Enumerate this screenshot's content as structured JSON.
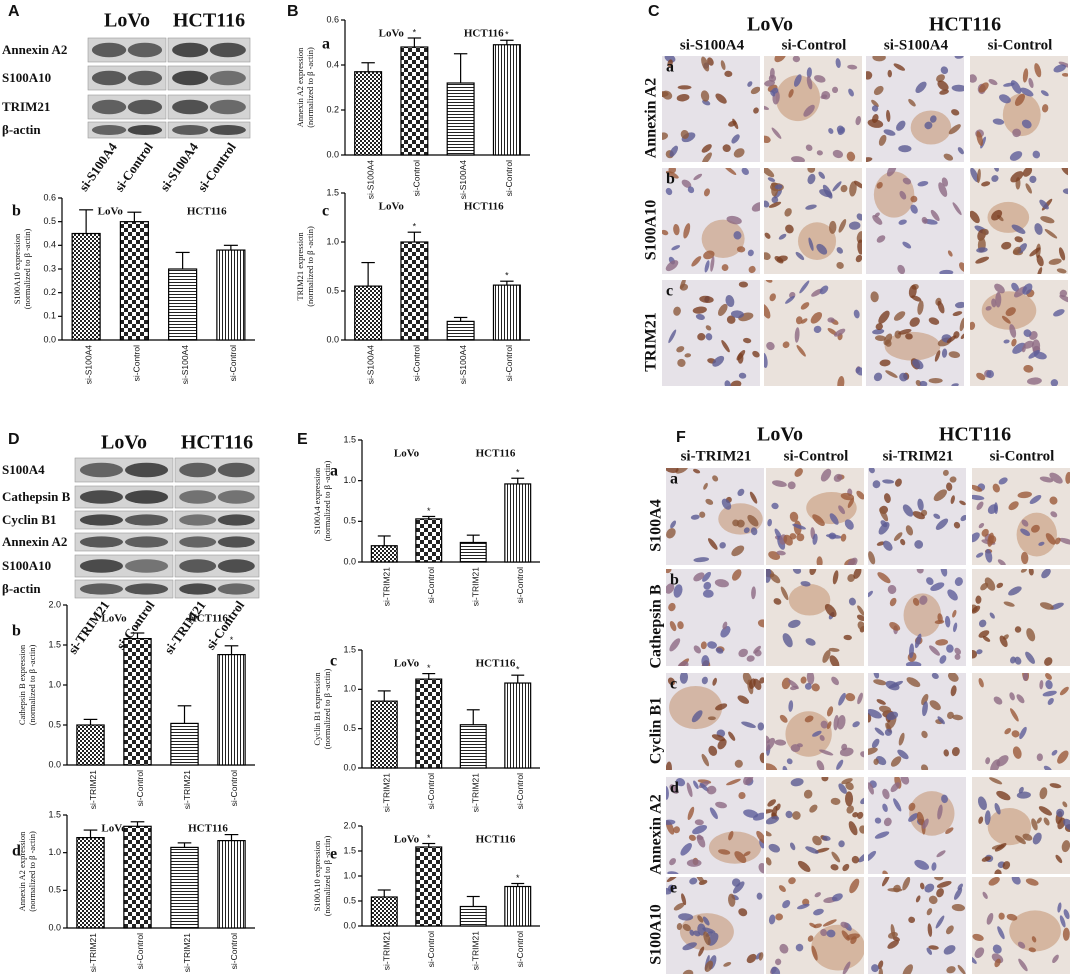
{
  "blots": [
    {
      "panel": "A",
      "groups": [
        "LoVo",
        "HCT116"
      ],
      "rows": [
        "Annexin A2",
        "S100A10",
        "TRIM21",
        "β-actin"
      ],
      "lanes": [
        "si-S100A4",
        "si-Control",
        "si-S100A4",
        "si-Control"
      ]
    },
    {
      "panel": "D",
      "groups": [
        "LoVo",
        "HCT116"
      ],
      "rows": [
        "S100A4",
        "Cathepsin B",
        "Cyclin B1",
        "Annexin A2",
        "S100A10",
        "β-actin"
      ],
      "lanes": [
        "si-TRIM21",
        "si-Control",
        "si-TRIM21",
        "si-Control"
      ]
    }
  ],
  "micrographs": [
    {
      "panel": "C",
      "groups": [
        "LoVo",
        "HCT116"
      ],
      "columns": [
        "si-S100A4",
        "si-Control",
        "si-S100A4",
        "si-Control"
      ],
      "rows": [
        {
          "letter": "a",
          "label": "Annexin A2"
        },
        {
          "letter": "b",
          "label": "S100A10"
        },
        {
          "letter": "c",
          "label": "TRIM21"
        }
      ]
    },
    {
      "panel": "F",
      "groups": [
        "LoVo",
        "HCT116"
      ],
      "columns": [
        "si-TRIM21",
        "si-Control",
        "si-TRIM21",
        "si-Control"
      ],
      "rows": [
        {
          "letter": "a",
          "label": "S100A4"
        },
        {
          "letter": "b",
          "label": "Cathepsin B"
        },
        {
          "letter": "c",
          "label": "Cyclin B1"
        },
        {
          "letter": "d",
          "label": "Annexin A2"
        },
        {
          "letter": "e",
          "label": "S100A10"
        }
      ]
    }
  ],
  "chart_data": [
    {
      "type": "bar",
      "panel": "B",
      "letter": "a",
      "ylabel": [
        "Annexin A2 expression",
        "(normalized to β -actin)"
      ],
      "groups": [
        "LoVo",
        "HCT116"
      ],
      "categories": [
        "si-S100A4",
        "si-Control",
        "si-S100A4",
        "si-Control"
      ],
      "values": [
        0.37,
        0.48,
        0.32,
        0.49
      ],
      "errors": [
        0.04,
        0.04,
        0.13,
        0.02
      ],
      "significance": [
        null,
        "*",
        null,
        "*"
      ],
      "fills": [
        "checker-small",
        "checker-large",
        "horizontal-lines",
        "vertical-lines"
      ],
      "ylim": [
        0,
        0.6
      ],
      "yticks": [
        {
          "value": 0,
          "label": "0.0"
        },
        0.2,
        0.4,
        0.6
      ]
    },
    {
      "type": "bar",
      "letter": "b",
      "ylabel": [
        "S100A10 expression",
        "(normalized to β -actin)"
      ],
      "groups": [
        "LoVo",
        "HCT116"
      ],
      "categories": [
        "si-S100A4",
        "si-Control",
        "si-S100A4",
        "si-Control"
      ],
      "values": [
        0.45,
        0.5,
        0.3,
        0.38
      ],
      "errors": [
        0.1,
        0.04,
        0.07,
        0.02
      ],
      "significance": [
        null,
        null,
        null,
        null
      ],
      "fills": [
        "checker-small",
        "checker-large",
        "horizontal-lines",
        "vertical-lines"
      ],
      "ylim": [
        0,
        0.6
      ],
      "yticks": [
        {
          "value": 0,
          "label": "0.0"
        },
        0.1,
        0.2,
        0.3,
        0.4,
        0.5,
        0.6
      ]
    },
    {
      "type": "bar",
      "letter": "c",
      "ylabel": [
        "TRIM21 expression",
        "(normalized to β -actin)"
      ],
      "groups": [
        "LoVo",
        "HCT116"
      ],
      "categories": [
        "si-S100A4",
        "si-Control",
        "si-S100A4",
        "si-Control"
      ],
      "values": [
        0.55,
        1.0,
        0.19,
        0.56
      ],
      "errors": [
        0.24,
        0.1,
        0.04,
        0.04
      ],
      "significance": [
        null,
        "*",
        null,
        "*"
      ],
      "fills": [
        "checker-small",
        "checker-large",
        "horizontal-lines",
        "vertical-lines"
      ],
      "ylim": [
        0,
        1.5
      ],
      "yticks": [
        {
          "value": 0,
          "label": "0.0"
        },
        0.5,
        {
          "value": 1,
          "label": "1.0"
        },
        1.5
      ]
    },
    {
      "type": "bar",
      "letter": "b",
      "ylabel": [
        "Cathepsin B expression",
        "(normalized to β -actin)"
      ],
      "groups": [
        "LoVo",
        "HCT116"
      ],
      "categories": [
        "si-TRIM21",
        "si-Control",
        "si-TRIM21",
        "si-Control"
      ],
      "values": [
        0.5,
        1.58,
        0.52,
        1.38
      ],
      "errors": [
        0.07,
        0.07,
        0.22,
        0.11
      ],
      "significance": [
        null,
        "*",
        null,
        "*"
      ],
      "fills": [
        "checker-small",
        "checker-large",
        "horizontal-lines",
        "vertical-lines"
      ],
      "ylim": [
        0,
        2
      ],
      "yticks": [
        {
          "value": 0,
          "label": "0.0"
        },
        0.5,
        {
          "value": 1,
          "label": "1.0"
        },
        1.5,
        {
          "value": 2,
          "label": "2.0"
        }
      ]
    },
    {
      "type": "bar",
      "letter": "d",
      "ylabel": [
        "Annexin A2 expression",
        "(normalized to β -actin)"
      ],
      "groups": [
        "LoVo",
        "HCT116"
      ],
      "categories": [
        "si-TRIM21",
        "si-Control",
        "si-TRIM21",
        "si-Control"
      ],
      "values": [
        1.2,
        1.35,
        1.07,
        1.16
      ],
      "errors": [
        0.1,
        0.06,
        0.06,
        0.08
      ],
      "significance": [
        null,
        null,
        null,
        null
      ],
      "fills": [
        "checker-small",
        "checker-large",
        "horizontal-lines",
        "vertical-lines"
      ],
      "ylim": [
        0,
        1.5
      ],
      "yticks": [
        {
          "value": 0,
          "label": "0.0"
        },
        0.5,
        {
          "value": 1,
          "label": "1.0"
        },
        1.5
      ]
    },
    {
      "type": "bar",
      "panel": "E",
      "letter": "a",
      "ylabel": [
        "S100A4 expression",
        "(normalized to β -actin)"
      ],
      "groups": [
        "LoVo",
        "HCT116"
      ],
      "categories": [
        "si-TRIM21",
        "si-Control",
        "si-TRIM21",
        "si-Control"
      ],
      "values": [
        0.2,
        0.53,
        0.24,
        0.96
      ],
      "errors": [
        0.12,
        0.03,
        0.09,
        0.07
      ],
      "significance": [
        null,
        "*",
        null,
        "*"
      ],
      "fills": [
        "checker-small",
        "checker-large",
        "horizontal-lines",
        "vertical-lines"
      ],
      "ylim": [
        0,
        1.5
      ],
      "yticks": [
        {
          "value": 0,
          "label": "0.0"
        },
        0.5,
        {
          "value": 1,
          "label": "1.0"
        },
        1.5
      ]
    },
    {
      "type": "bar",
      "letter": "c",
      "ylabel": [
        "Cyclin B1 expression",
        "(normalized to β -actin)"
      ],
      "groups": [
        "LoVo",
        "HCT116"
      ],
      "categories": [
        "si-TRIM21",
        "si-Control",
        "si-TRIM21",
        "si-Control"
      ],
      "values": [
        0.85,
        1.13,
        0.55,
        1.08
      ],
      "errors": [
        0.13,
        0.07,
        0.19,
        0.1
      ],
      "significance": [
        null,
        "*",
        null,
        "*"
      ],
      "fills": [
        "checker-small",
        "checker-large",
        "horizontal-lines",
        "vertical-lines"
      ],
      "ylim": [
        0,
        1.5
      ],
      "yticks": [
        {
          "value": 0,
          "label": "0.0"
        },
        0.5,
        {
          "value": 1,
          "label": "1.0"
        },
        1.5
      ]
    },
    {
      "type": "bar",
      "letter": "e",
      "ylabel": [
        "S100A10 expression",
        "(normalized to β -actin)"
      ],
      "groups": [
        "LoVo",
        "HCT116"
      ],
      "categories": [
        "si-TRIM21",
        "si-Control",
        "si-TRIM21",
        "si-Control"
      ],
      "values": [
        0.58,
        1.58,
        0.39,
        0.79
      ],
      "errors": [
        0.14,
        0.07,
        0.2,
        0.06
      ],
      "significance": [
        null,
        "*",
        null,
        "*"
      ],
      "fills": [
        "checker-small",
        "checker-large",
        "horizontal-lines",
        "vertical-lines"
      ],
      "ylim": [
        0,
        2
      ],
      "yticks": [
        {
          "value": 0,
          "label": "0.0"
        },
        0.5,
        {
          "value": 1,
          "label": "1.0"
        },
        1.5,
        {
          "value": 2,
          "label": "2.0"
        }
      ]
    }
  ]
}
